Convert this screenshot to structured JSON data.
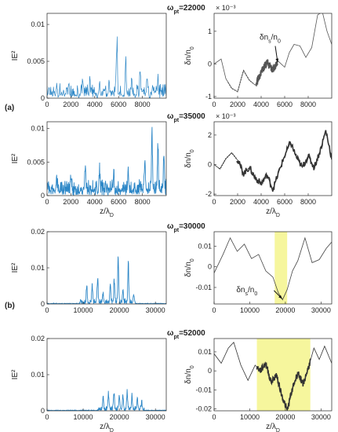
{
  "figure": {
    "part_labels": [
      "(a)",
      "(b)"
    ],
    "arrow_labels": [
      {
        "panel": 1,
        "text": "δn_s/n_0"
      },
      {
        "panel": 5,
        "text": "δn_s/n_0"
      }
    ]
  },
  "chart_data": [
    {
      "type": "line",
      "ylabel": "IE²",
      "xlabel": "",
      "color": "#2d87c7",
      "xlim": [
        0,
        10000
      ],
      "ylim": [
        0,
        0.0115
      ],
      "xticks": [
        "0",
        "2000",
        "4000",
        "6000",
        "8000"
      ],
      "xtickvals": [
        0,
        2000,
        4000,
        6000,
        8000
      ],
      "yticks": [
        "0",
        "0.005",
        "0.01"
      ],
      "ytickvals": [
        0,
        0.005,
        0.01
      ],
      "style": "spiky",
      "baseline": 0.0005,
      "noise": 0.0016,
      "seed": 11,
      "peaks": [
        [
          800,
          0.0015
        ],
        [
          1800,
          0.0018
        ],
        [
          3000,
          0.0028
        ],
        [
          3600,
          0.0022
        ],
        [
          4400,
          0.0021
        ],
        [
          5200,
          0.0025
        ],
        [
          5850,
          0.0095
        ],
        [
          6600,
          0.0052
        ],
        [
          7100,
          0.0025
        ],
        [
          7800,
          0.0035
        ],
        [
          8400,
          0.0027
        ],
        [
          9300,
          0.0028
        ]
      ]
    },
    {
      "type": "line",
      "title": "ω_pt=22000",
      "exponent": "× 10⁻³",
      "ylabel": "δn/n_0",
      "xlabel": "",
      "color": "#555555",
      "xlim": [
        0,
        10000
      ],
      "ylim": [
        -1.05,
        1.55
      ],
      "xticks": [
        "0",
        "2000",
        "4000",
        "6000",
        "8000"
      ],
      "xtickvals": [
        0,
        2000,
        4000,
        6000,
        8000
      ],
      "yticks": [
        "-1",
        "0",
        "1"
      ],
      "ytickvals": [
        -1,
        0,
        1
      ],
      "style": "wave",
      "points": [
        [
          0,
          0
        ],
        [
          600,
          0.15
        ],
        [
          1000,
          -0.45
        ],
        [
          1500,
          -0.75
        ],
        [
          2000,
          -0.85
        ],
        [
          2500,
          -0.2
        ],
        [
          3000,
          -0.5
        ],
        [
          3500,
          -0.65
        ],
        [
          4000,
          -0.25
        ],
        [
          4500,
          0.05
        ],
        [
          5000,
          -0.2
        ],
        [
          5400,
          0.1
        ],
        [
          6000,
          -0.1
        ],
        [
          6400,
          0.35
        ],
        [
          6800,
          0.6
        ],
        [
          7300,
          0.55
        ],
        [
          7800,
          0.2
        ],
        [
          8300,
          0.5
        ],
        [
          8800,
          1.5
        ],
        [
          9200,
          1.6
        ],
        [
          9600,
          1.0
        ],
        [
          10000,
          0.6
        ]
      ],
      "thick": [
        [
          3600,
          5400
        ]
      ],
      "dotted": [
        [
          1200,
          3300
        ]
      ],
      "arrow": {
        "from": [
          5200,
          0.55
        ],
        "to": [
          5400,
          0.05
        ]
      }
    },
    {
      "type": "line",
      "ylabel": "IE²",
      "xlabel": "z/λ_D",
      "color": "#2d87c7",
      "xlim": [
        0,
        10000
      ],
      "ylim": [
        0,
        0.011
      ],
      "xticks": [
        "0",
        "2000",
        "4000",
        "6000",
        "8000"
      ],
      "xtickvals": [
        0,
        2000,
        4000,
        6000,
        8000
      ],
      "yticks": [
        "0",
        "0.005",
        "0.01"
      ],
      "ytickvals": [
        0,
        0.005,
        0.01
      ],
      "style": "dense",
      "baseline": 0.0008,
      "noise": 0.0018,
      "seed": 23,
      "peaks": [
        [
          800,
          0.0022
        ],
        [
          2000,
          0.0028
        ],
        [
          3200,
          0.0035
        ],
        [
          4400,
          0.0032
        ],
        [
          5600,
          0.0028
        ],
        [
          6800,
          0.0035
        ],
        [
          8200,
          0.0048
        ],
        [
          8800,
          0.0095
        ],
        [
          9300,
          0.0088
        ],
        [
          9800,
          0.0075
        ]
      ]
    },
    {
      "type": "line",
      "title": "ω_pt=35000",
      "exponent": "× 10⁻³",
      "ylabel": "δn/n_0",
      "xlabel": "z/λ_D",
      "color": "#333333",
      "xlim": [
        0,
        10000
      ],
      "ylim": [
        -2.1,
        2.9
      ],
      "xticks": [
        "0",
        "2000",
        "4000",
        "6000",
        "8000"
      ],
      "xtickvals": [
        0,
        2000,
        4000,
        6000,
        8000
      ],
      "yticks": [
        "-2",
        "0",
        "2"
      ],
      "ytickvals": [
        -2,
        0,
        2
      ],
      "style": "wave",
      "points": [
        [
          0,
          0
        ],
        [
          500,
          -0.3
        ],
        [
          1000,
          0.4
        ],
        [
          1500,
          0.8
        ],
        [
          2000,
          0.3
        ],
        [
          2500,
          -0.6
        ],
        [
          3000,
          -0.2
        ],
        [
          3500,
          -0.9
        ],
        [
          4000,
          -1.3
        ],
        [
          4500,
          -0.7
        ],
        [
          5000,
          -1.7
        ],
        [
          5500,
          -0.5
        ],
        [
          6000,
          0.6
        ],
        [
          6500,
          1.5
        ],
        [
          7000,
          0.5
        ],
        [
          7500,
          -0.2
        ],
        [
          8000,
          0.6
        ],
        [
          8500,
          -0.2
        ],
        [
          9000,
          0.9
        ],
        [
          9500,
          2.3
        ],
        [
          10000,
          0.4
        ]
      ],
      "thick": [
        [
          1900,
          10000
        ]
      ],
      "dotted": [
        [
          400,
          1900
        ]
      ]
    },
    {
      "type": "line",
      "ylabel": "IE²",
      "xlabel": "",
      "color": "#2d87c7",
      "xlim": [
        0,
        33000
      ],
      "ylim": [
        0,
        0.02
      ],
      "xticks": [
        "0",
        "10000",
        "20000",
        "30000"
      ],
      "xtickvals": [
        0,
        10000,
        20000,
        30000
      ],
      "yticks": [
        "0",
        "0.01",
        "0.02"
      ],
      "ytickvals": [
        0,
        0.01,
        0.02
      ],
      "style": "bursts",
      "baseline": 0.0002,
      "noise": 0.0012,
      "seed": 37,
      "active": [
        9000,
        24500
      ],
      "peaks": [
        [
          11000,
          0.005
        ],
        [
          12500,
          0.006
        ],
        [
          14000,
          0.009
        ],
        [
          15500,
          0.0035
        ],
        [
          17500,
          0.0055
        ],
        [
          18600,
          0.0075
        ],
        [
          19700,
          0.015
        ],
        [
          21000,
          0.004
        ],
        [
          22500,
          0.0135
        ],
        [
          24000,
          0.003
        ]
      ]
    },
    {
      "type": "line",
      "title": "ω_pt=30000",
      "ylabel": "δn/n_0",
      "xlabel": "",
      "color": "#444444",
      "xlim": [
        0,
        33000
      ],
      "ylim": [
        -0.018,
        0.017
      ],
      "xticks": [
        "0",
        "10000",
        "20000",
        "30000"
      ],
      "xtickvals": [
        0,
        10000,
        20000,
        30000
      ],
      "yticks": [
        "-0.01",
        "0",
        "0.01"
      ],
      "ytickvals": [
        -0.01,
        0,
        0.01
      ],
      "style": "wave",
      "points": [
        [
          0,
          -0.003
        ],
        [
          2500,
          0.006
        ],
        [
          4500,
          0.014
        ],
        [
          6500,
          0.0075
        ],
        [
          8500,
          0.011
        ],
        [
          10500,
          0.004
        ],
        [
          12500,
          0.006
        ],
        [
          14500,
          -0.002
        ],
        [
          16500,
          -0.005
        ],
        [
          18000,
          -0.0125
        ],
        [
          19200,
          -0.016
        ],
        [
          20500,
          -0.011
        ],
        [
          22000,
          -0.002
        ],
        [
          23500,
          0.003
        ],
        [
          25500,
          0.014
        ],
        [
          27500,
          0.002
        ],
        [
          29500,
          0.0035
        ],
        [
          31500,
          0.009
        ],
        [
          33000,
          0.012
        ]
      ],
      "highlight": [
        17000,
        20500
      ],
      "arrow": {
        "from": [
          16800,
          -0.0115
        ],
        "to": [
          19100,
          -0.0155
        ]
      }
    },
    {
      "type": "line",
      "ylabel": "IE²",
      "xlabel": "z/λ_D",
      "color": "#2d87c7",
      "xlim": [
        0,
        33000
      ],
      "ylim": [
        0,
        0.02
      ],
      "xticks": [
        "0",
        "10000",
        "20000",
        "30000"
      ],
      "xtickvals": [
        0,
        10000,
        20000,
        30000
      ],
      "yticks": [
        "0",
        "0.01",
        "0.02"
      ],
      "ytickvals": [
        0,
        0.01,
        0.02
      ],
      "style": "bursts",
      "baseline": 0.0002,
      "noise": 0.0012,
      "seed": 41,
      "active": [
        14000,
        27000
      ],
      "peaks": [
        [
          15500,
          0.0042
        ],
        [
          17000,
          0.0058
        ],
        [
          18500,
          0.0062
        ],
        [
          20000,
          0.005
        ],
        [
          21000,
          0.0048
        ],
        [
          22200,
          0.0052
        ],
        [
          23500,
          0.0045
        ],
        [
          25000,
          0.0036
        ],
        [
          26200,
          0.0028
        ]
      ]
    },
    {
      "type": "line",
      "title": "ω_pt=52000",
      "ylabel": "δn/n_0",
      "xlabel": "z/λ_D",
      "color": "#333333",
      "xlim": [
        0,
        33000
      ],
      "ylim": [
        -0.021,
        0.017
      ],
      "xticks": [
        "0",
        "10000",
        "20000",
        "30000"
      ],
      "xtickvals": [
        0,
        10000,
        20000,
        30000
      ],
      "yticks": [
        "-0.02",
        "-0.01",
        "0",
        "0.01"
      ],
      "ytickvals": [
        -0.02,
        -0.01,
        0,
        0.01
      ],
      "style": "wave",
      "points": [
        [
          0,
          0.009
        ],
        [
          2000,
          0.004
        ],
        [
          4000,
          0.012
        ],
        [
          5500,
          0.015
        ],
        [
          7500,
          0.003
        ],
        [
          9500,
          -0.005
        ],
        [
          11500,
          0.003
        ],
        [
          13000,
          0.0
        ],
        [
          14500,
          0.004
        ],
        [
          16000,
          -0.006
        ],
        [
          17500,
          -0.002
        ],
        [
          19000,
          -0.013
        ],
        [
          20500,
          -0.021
        ],
        [
          22000,
          -0.009
        ],
        [
          23500,
          -0.001
        ],
        [
          25000,
          -0.007
        ],
        [
          26500,
          0.002
        ],
        [
          28000,
          0.012
        ],
        [
          29500,
          0.006
        ],
        [
          31000,
          0.013
        ],
        [
          33000,
          0.004
        ]
      ],
      "highlight": [
        12000,
        27000
      ],
      "thick": [
        [
          12000,
          27000
        ]
      ]
    }
  ]
}
